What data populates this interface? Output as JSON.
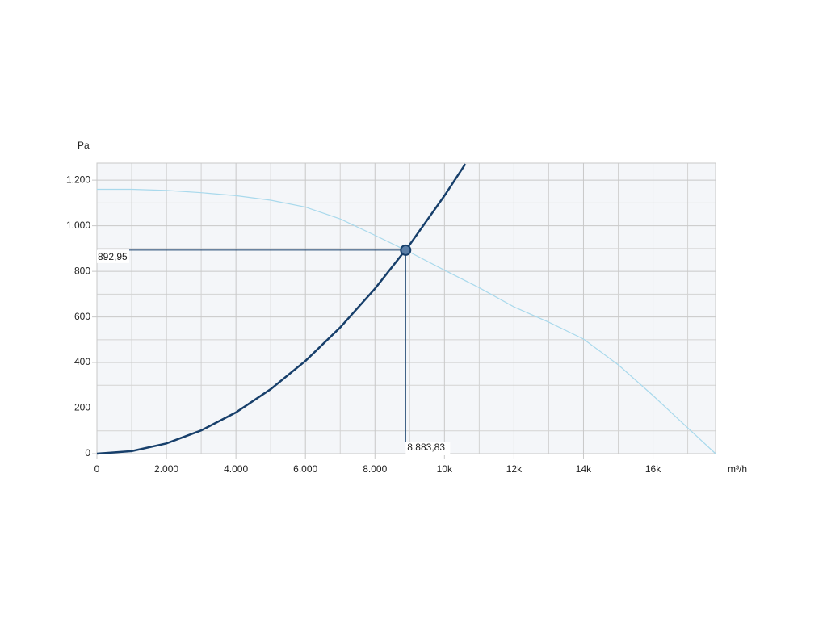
{
  "chart_data": {
    "type": "line",
    "ylabel": "Pa",
    "xlabel": "m³/h",
    "xlim": [
      0,
      17800
    ],
    "ylim": [
      0,
      1275
    ],
    "xticks": [
      0,
      {
        "value": 2000,
        "label": "2.000"
      },
      {
        "value": 4000,
        "label": "4.000"
      },
      {
        "value": 6000,
        "label": "6.000"
      },
      {
        "value": 8000,
        "label": "8.000"
      },
      {
        "value": 10000,
        "label": "10k"
      },
      {
        "value": 12000,
        "label": "12k"
      },
      {
        "value": 14000,
        "label": "14k"
      },
      {
        "value": 16000,
        "label": "16k"
      }
    ],
    "yticks": [
      0,
      200,
      400,
      600,
      800,
      {
        "value": 1000,
        "label": "1.000"
      },
      {
        "value": 1200,
        "label": "1.200"
      }
    ],
    "grid": true,
    "series": [
      {
        "color": "#a9d9ec",
        "x": [
          0,
          1000,
          2000,
          3000,
          4000,
          5000,
          6000,
          7000,
          8000,
          9000,
          10000,
          11000,
          12000,
          13000,
          14000,
          15000,
          16000,
          17000,
          17800
        ],
        "y": [
          1160,
          1160,
          1155,
          1145,
          1132,
          1112,
          1082,
          1030,
          958,
          884,
          805,
          728,
          644,
          577,
          503,
          390,
          255,
          113,
          0
        ]
      },
      {
        "color": "#173f6b",
        "x": [
          0,
          1000,
          2000,
          3000,
          4000,
          5000,
          6000,
          7000,
          8000,
          9000,
          10000,
          10600
        ],
        "y": [
          0,
          11,
          45,
          102,
          181,
          283,
          407,
          554,
          724,
          917,
          1132,
          1271
        ]
      }
    ],
    "operating_point": {
      "x": 8883.83,
      "y": 892.95,
      "x_label": "8.883,83",
      "y_label": "892,95",
      "color": "#173f6b"
    }
  }
}
